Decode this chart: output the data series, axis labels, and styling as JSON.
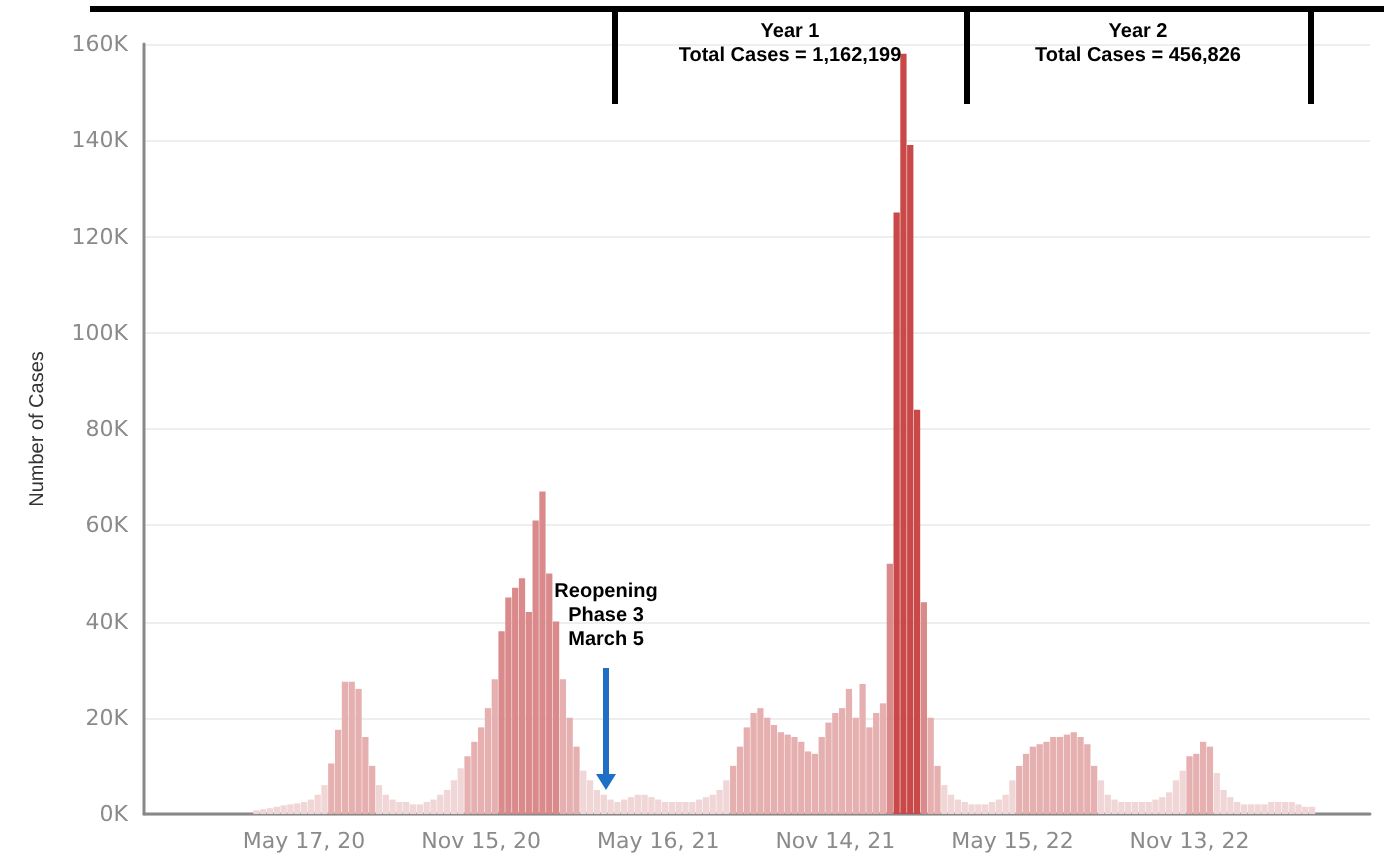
{
  "chart_data": {
    "type": "bar",
    "ylabel": "Number of Cases",
    "categories": [
      null,
      null,
      null,
      null,
      null,
      null,
      null,
      null,
      null,
      null,
      null,
      null,
      null,
      null,
      null,
      null,
      null,
      null,
      null,
      null,
      null,
      null,
      null,
      "May 17, 20",
      null,
      null,
      null,
      null,
      null,
      null,
      null,
      null,
      null,
      null,
      null,
      null,
      null,
      null,
      null,
      null,
      null,
      null,
      null,
      null,
      null,
      null,
      null,
      null,
      null,
      "Nov 15, 20",
      null,
      null,
      null,
      null,
      null,
      null,
      null,
      null,
      null,
      null,
      null,
      null,
      null,
      null,
      null,
      null,
      null,
      null,
      null,
      null,
      null,
      null,
      null,
      null,
      null,
      "May 16, 21",
      null,
      null,
      null,
      null,
      null,
      null,
      null,
      null,
      null,
      null,
      null,
      null,
      null,
      null,
      null,
      null,
      null,
      null,
      null,
      null,
      null,
      null,
      null,
      null,
      null,
      "Nov 14, 21",
      null,
      null,
      null,
      null,
      null,
      null,
      null,
      null,
      null,
      null,
      null,
      null,
      null,
      null,
      null,
      null,
      null,
      null,
      null,
      null,
      null,
      null,
      null,
      null,
      null,
      "May 15, 22",
      null,
      null,
      null,
      null,
      null,
      null,
      null,
      null,
      null,
      null,
      null,
      null,
      null,
      null,
      null,
      null,
      null,
      null,
      null,
      null,
      null,
      null,
      null,
      null,
      null,
      "Nov 13, 22",
      null,
      null,
      null,
      null,
      null,
      null,
      null,
      null,
      null,
      null,
      null,
      null,
      null,
      null,
      null,
      null,
      null,
      null,
      null,
      null,
      null,
      null,
      null,
      null,
      null,
      null
    ],
    "values": [
      null,
      null,
      null,
      null,
      null,
      null,
      null,
      null,
      null,
      null,
      null,
      null,
      null,
      null,
      null,
      null,
      800,
      1000,
      1200,
      1500,
      1800,
      2000,
      2200,
      2500,
      3000,
      4000,
      6000,
      10500,
      17500,
      27500,
      27500,
      26000,
      16000,
      10000,
      6000,
      4000,
      3000,
      2500,
      2500,
      2000,
      2000,
      2500,
      3000,
      4000,
      5000,
      7000,
      9500,
      12000,
      15000,
      18000,
      22000,
      28000,
      38000,
      45000,
      47000,
      49000,
      42000,
      61000,
      67000,
      50000,
      40000,
      28000,
      20000,
      14000,
      9000,
      7000,
      5000,
      4000,
      3000,
      2500,
      3000,
      3500,
      4000,
      4000,
      3500,
      3000,
      2500,
      2500,
      2500,
      2500,
      2500,
      3000,
      3500,
      4000,
      5000,
      7000,
      10000,
      14000,
      18000,
      21000,
      22000,
      20000,
      18500,
      17000,
      16500,
      16000,
      15000,
      13000,
      12500,
      16000,
      19000,
      21000,
      22000,
      26000,
      20000,
      27000,
      18000,
      21000,
      23000,
      52000,
      125000,
      158000,
      139000,
      84000,
      44000,
      20000,
      10000,
      6000,
      4000,
      3000,
      2500,
      2000,
      2000,
      2000,
      2500,
      3000,
      4000,
      7000,
      10000,
      12500,
      14000,
      14500,
      15000,
      16000,
      16000,
      16500,
      17000,
      16000,
      14500,
      10000,
      7000,
      4000,
      3000,
      2500,
      2500,
      2500,
      2500,
      2500,
      3000,
      3500,
      4500,
      7000,
      9000,
      12000,
      12500,
      15000,
      14000,
      8500,
      5000,
      3500,
      2500,
      2000,
      2000,
      2000,
      2000,
      2500,
      2500,
      2500,
      2500,
      2000,
      1500,
      1500,
      null,
      null,
      null,
      null,
      null,
      null,
      null,
      null
    ],
    "colors": [
      null,
      null,
      null,
      null,
      null,
      null,
      null,
      null,
      null,
      null,
      null,
      null,
      "#f0d6d6",
      "#f0d6d6",
      "#f0d6d6",
      "#f0d6d6",
      "#f0d6d6",
      "#f0d6d6",
      "#f0d6d6",
      "#f0d6d6",
      "#f0d6d6",
      "#f0d6d6",
      "#f0d6d6",
      "#f0d6d6",
      "#f0d6d6",
      "#f0d6d6",
      "#f0d6d6",
      "#e6b0b0",
      "#e6b0b0",
      "#e6b0b0",
      "#e6b0b0",
      "#e6b0b0",
      "#e6b0b0",
      "#e6b0b0",
      "#f0d6d6",
      "#f0d6d6",
      "#f0d6d6",
      "#f0d6d6",
      "#f0d6d6",
      "#f0d6d6",
      "#f0d6d6",
      "#f0d6d6",
      "#f0d6d6",
      "#f0d6d6",
      "#f0d6d6",
      "#f0d6d6",
      "#f0d6d6",
      "#e6b0b0",
      "#e6b0b0",
      "#e6b0b0",
      "#e6b0b0",
      "#e6b0b0",
      "#da8a8a",
      "#da8a8a",
      "#da8a8a",
      "#da8a8a",
      "#da8a8a",
      "#da8a8a",
      "#da8a8a",
      "#da8a8a",
      "#da8a8a",
      "#e6b0b0",
      "#e6b0b0",
      "#e6b0b0",
      "#f0d6d6",
      "#f0d6d6",
      "#f0d6d6",
      "#f0d6d6",
      "#f0d6d6",
      "#f0d6d6",
      "#f0d6d6",
      "#f0d6d6",
      "#f0d6d6",
      "#f0d6d6",
      "#f0d6d6",
      "#f0d6d6",
      "#f0d6d6",
      "#f0d6d6",
      "#f0d6d6",
      "#f0d6d6",
      "#f0d6d6",
      "#f0d6d6",
      "#f0d6d6",
      "#f0d6d6",
      "#f0d6d6",
      "#f0d6d6",
      "#e6b0b0",
      "#e6b0b0",
      "#e6b0b0",
      "#e6b0b0",
      "#e6b0b0",
      "#e6b0b0",
      "#e6b0b0",
      "#e6b0b0",
      "#e6b0b0",
      "#e6b0b0",
      "#e6b0b0",
      "#e6b0b0",
      "#e6b0b0",
      "#e6b0b0",
      "#e6b0b0",
      "#e6b0b0",
      "#e6b0b0",
      "#e6b0b0",
      "#e6b0b0",
      "#e6b0b0",
      "#e6b0b0",
      "#e6b0b0",
      "#e6b0b0",
      "#da8a8a",
      "#c94848",
      "#c94848",
      "#c94848",
      "#c94848",
      "#da8a8a",
      "#e6b0b0",
      "#e6b0b0",
      "#f0d6d6",
      "#f0d6d6",
      "#f0d6d6",
      "#f0d6d6",
      "#f0d6d6",
      "#f0d6d6",
      "#f0d6d6",
      "#f0d6d6",
      "#f0d6d6",
      "#f0d6d6",
      "#f0d6d6",
      "#e6b0b0",
      "#e6b0b0",
      "#e6b0b0",
      "#e6b0b0",
      "#e6b0b0",
      "#e6b0b0",
      "#e6b0b0",
      "#e6b0b0",
      "#e6b0b0",
      "#e6b0b0",
      "#e6b0b0",
      "#e6b0b0",
      "#f0d6d6",
      "#f0d6d6",
      "#f0d6d6",
      "#f0d6d6",
      "#f0d6d6",
      "#f0d6d6",
      "#f0d6d6",
      "#f0d6d6",
      "#f0d6d6",
      "#f0d6d6",
      "#f0d6d6",
      "#f0d6d6",
      "#f0d6d6",
      "#e6b0b0",
      "#e6b0b0",
      "#e6b0b0",
      "#e6b0b0",
      "#f0d6d6",
      "#f0d6d6",
      "#f0d6d6",
      "#f0d6d6",
      "#f0d6d6",
      "#f0d6d6",
      "#f0d6d6",
      "#f0d6d6",
      "#f0d6d6",
      "#f0d6d6",
      "#f0d6d6",
      "#f0d6d6",
      "#f0d6d6",
      "#f0d6d6",
      "#f0d6d6",
      null,
      null,
      null,
      null,
      null,
      null,
      null,
      null
    ],
    "ylim": [
      0,
      160000
    ],
    "yticks": [
      {
        "value": 0,
        "label": "0K"
      },
      {
        "value": 20000,
        "label": "20K"
      },
      {
        "value": 40000,
        "label": "40K"
      },
      {
        "value": 60000,
        "label": "60K"
      },
      {
        "value": 80000,
        "label": "80K"
      },
      {
        "value": 100000,
        "label": "100K"
      },
      {
        "value": 120000,
        "label": "120K"
      },
      {
        "value": 140000,
        "label": "140K"
      },
      {
        "value": 160000,
        "label": "160K"
      }
    ],
    "grid": "y",
    "annotations": [
      "Year 1\nTotal Cases = 1,162,199",
      "Year 2\nTotal Cases = 456,826",
      {
        "text": "Reopening\nPhase 3\nMarch 5",
        "y": 5000
      }
    ]
  }
}
